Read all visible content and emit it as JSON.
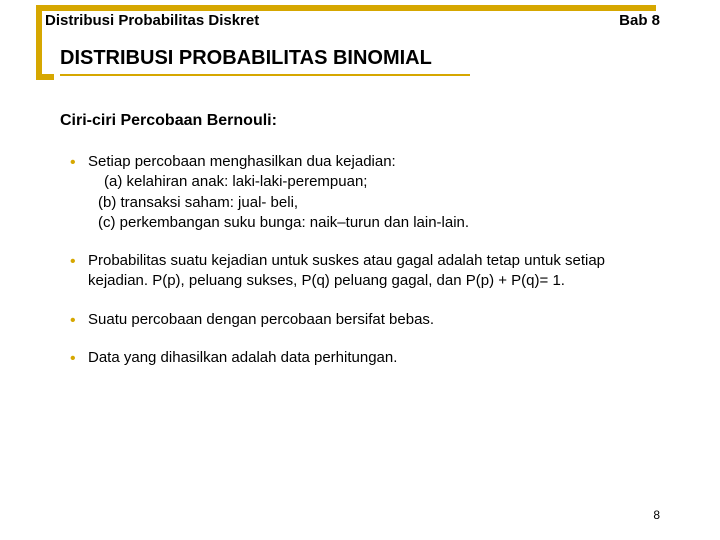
{
  "header": {
    "left": "Distribusi Probabilitas Diskret",
    "right": "Bab 8"
  },
  "title": "DISTRIBUSI PROBABILITAS BINOMIAL",
  "subtitle": "Ciri-ciri Percobaan Bernouli:",
  "bullets": [
    {
      "main": "Setiap percobaan menghasilkan dua kejadian:",
      "subs": [
        "(a) kelahiran anak: laki-laki-perempuan;",
        "(b) transaksi saham: jual- beli,",
        "(c) perkembangan suku bunga: naik–turun dan lain-lain."
      ]
    },
    {
      "main": "Probabilitas suatu kejadian untuk suskes atau gagal adalah tetap untuk setiap kejadian. P(p), peluang sukses, P(q) peluang gagal, dan P(p) + P(q)= 1."
    },
    {
      "main": "Suatu percobaan dengan percobaan bersifat bebas."
    },
    {
      "main": "Data yang dihasilkan adalah data perhitungan."
    }
  ],
  "pageNumber": "8",
  "colors": {
    "accent": "#d6a700",
    "text": "#000000",
    "background": "#ffffff"
  }
}
